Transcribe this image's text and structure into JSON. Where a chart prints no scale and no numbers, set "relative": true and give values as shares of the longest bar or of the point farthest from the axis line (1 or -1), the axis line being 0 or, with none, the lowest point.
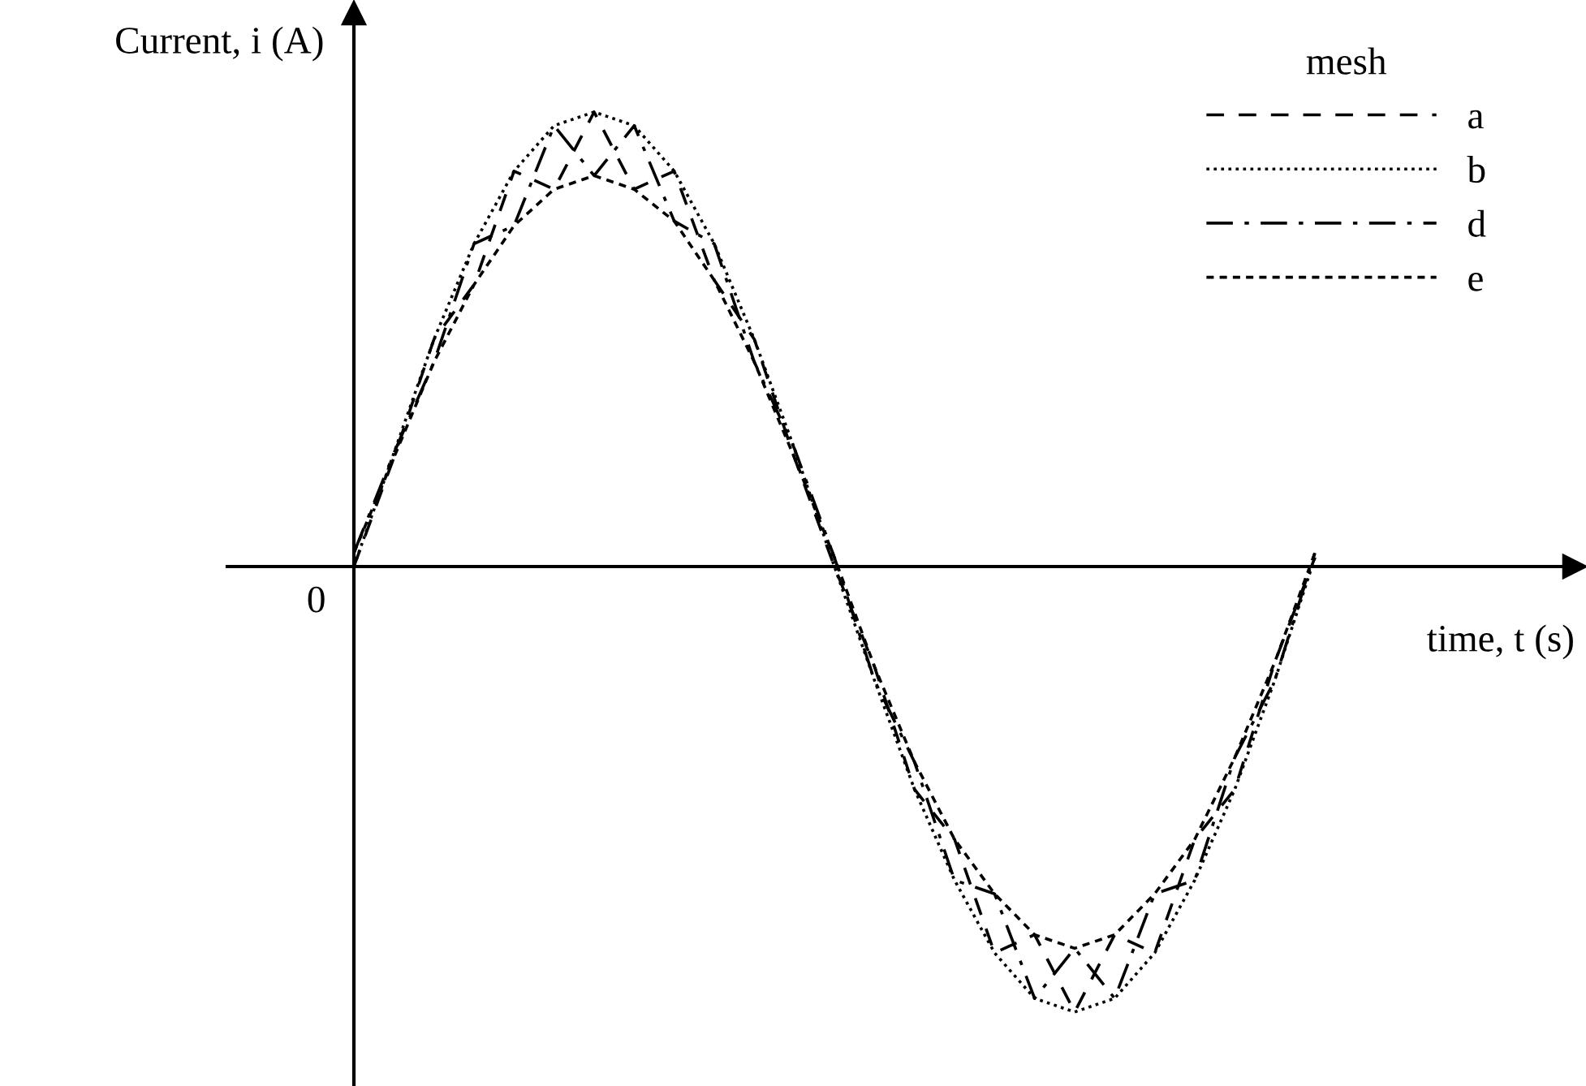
{
  "chart_data": {
    "type": "line",
    "relative": true,
    "xlabel": "time, t (s)",
    "ylabel": "Current, i (A)",
    "legend_title": "mesh",
    "legend": "top right",
    "marker": "none",
    "annotations": [
      "0"
    ],
    "categories": [
      null,
      null,
      null,
      null,
      null,
      null,
      null,
      null,
      null,
      null,
      null,
      null,
      null,
      null,
      null,
      null,
      null,
      null,
      null,
      null,
      null,
      null,
      null,
      null,
      null
    ],
    "series": [
      {
        "name": "a",
        "color": "#000000",
        "line_style": "dashed",
        "values": [
          0,
          0.24,
          0.5,
          0.62,
          0.87,
          0.83,
          1.0,
          0.83,
          0.87,
          0.63,
          0.5,
          0.24,
          0,
          -0.22,
          -0.49,
          -0.6,
          -0.85,
          -0.81,
          -0.98,
          -0.81,
          -0.85,
          -0.6,
          -0.49,
          -0.21,
          0.02
        ]
      },
      {
        "name": "b",
        "color": "#000000",
        "line_style": "dotted",
        "values": [
          0,
          0.25,
          0.5,
          0.71,
          0.87,
          0.97,
          1.0,
          0.97,
          0.87,
          0.71,
          0.5,
          0.26,
          0,
          -0.25,
          -0.49,
          -0.69,
          -0.85,
          -0.95,
          -0.98,
          -0.95,
          -0.85,
          -0.69,
          -0.49,
          -0.25,
          0.02
        ]
      },
      {
        "name": "d",
        "color": "#000000",
        "line_style": "dashdot",
        "values": [
          0.03,
          0.25,
          0.45,
          0.71,
          0.75,
          0.97,
          0.86,
          0.97,
          0.76,
          0.71,
          0.45,
          0.26,
          0.02,
          -0.25,
          -0.43,
          -0.69,
          -0.72,
          -0.95,
          -0.84,
          -0.95,
          -0.72,
          -0.69,
          -0.42,
          -0.25,
          0.03
        ]
      },
      {
        "name": "e",
        "color": "#000000",
        "line_style": "densely dashed",
        "values": [
          0.03,
          0.24,
          0.45,
          0.62,
          0.75,
          0.83,
          0.86,
          0.83,
          0.76,
          0.63,
          0.45,
          0.24,
          0.02,
          -0.22,
          -0.43,
          -0.6,
          -0.72,
          -0.81,
          -0.84,
          -0.81,
          -0.72,
          -0.6,
          -0.42,
          -0.21,
          0.03
        ]
      }
    ]
  }
}
